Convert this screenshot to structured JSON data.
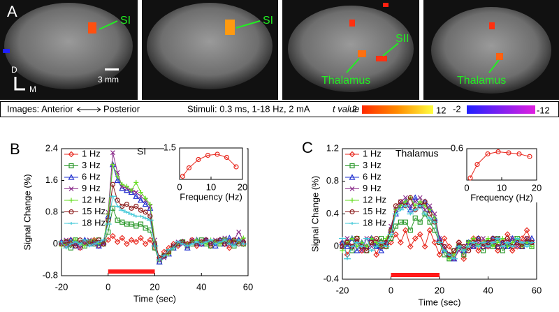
{
  "panel_a": {
    "label": "A",
    "annotations": [
      "SI",
      "SI",
      "SII",
      "Thalamus",
      "Thalamus"
    ],
    "orientation": [
      "D",
      "M"
    ],
    "scale_bar": "3 mm",
    "caption": {
      "images": "Images: Anterior",
      "posterior": "Posterior",
      "stimuli": "Stimuli: 0.3 ms, 1-18 Hz, 2 mA",
      "t_label": "t value",
      "positive": [
        2,
        12
      ],
      "negative": [
        -2,
        -12
      ]
    }
  },
  "chart_data": [
    {
      "type": "line",
      "panel": "B",
      "annotation": "SI",
      "x_label": "Time (sec)",
      "y_label": "Signal Change (%)",
      "x": [
        -20,
        -18,
        -16,
        -14,
        -12,
        -10,
        -8,
        -6,
        -4,
        -2,
        0,
        2,
        4,
        6,
        8,
        10,
        12,
        14,
        16,
        18,
        20,
        22,
        24,
        26,
        28,
        30,
        32,
        34,
        36,
        38,
        40,
        42,
        44,
        46,
        48,
        50,
        52,
        54,
        56,
        58
      ],
      "xlim": [
        -20,
        60
      ],
      "xticks": [
        -20,
        0,
        20,
        40,
        60
      ],
      "ylim": [
        -0.8,
        2.4
      ],
      "yticks": [
        -0.8,
        0,
        0.8,
        1.6,
        2.4
      ],
      "stimulus": [
        0,
        20
      ],
      "stimulus_color": "#ff1a1a",
      "legend": "upper-left",
      "series": [
        {
          "name": "1 Hz",
          "color": "#e8261c",
          "marker": "diamond",
          "values": [
            0.05,
            -0.05,
            0.1,
            0,
            -0.1,
            0.05,
            0,
            0.1,
            -0.05,
            0,
            0.1,
            0.2,
            0.05,
            0.15,
            0,
            0.1,
            0.05,
            0.15,
            0,
            0.1,
            -0.1,
            -0.35,
            -0.2,
            -0.1,
            0,
            -0.05,
            0.05,
            0,
            0.1,
            -0.05,
            0,
            0.1,
            -0.05,
            0.05,
            0.1,
            0,
            -0.1,
            0.05,
            0.1,
            0
          ]
        },
        {
          "name": "3 Hz",
          "color": "#2e9a2e",
          "marker": "square",
          "values": [
            0,
            0.05,
            -0.1,
            0.1,
            0,
            -0.05,
            0.05,
            0,
            0.1,
            0,
            0.3,
            0.9,
            0.6,
            0.55,
            0.5,
            0.5,
            0.45,
            0.5,
            0.4,
            0.35,
            -0.1,
            -0.45,
            -0.3,
            -0.2,
            -0.1,
            0,
            0.05,
            -0.05,
            0,
            0.05,
            0.1,
            0,
            -0.05,
            0.05,
            0,
            0.1,
            0.05,
            -0.05,
            0.05,
            0
          ]
        },
        {
          "name": "6 Hz",
          "color": "#2030d0",
          "marker": "triangle",
          "values": [
            0.05,
            0,
            0.1,
            -0.05,
            0,
            0.1,
            0,
            0.05,
            -0.05,
            0.05,
            0.7,
            2.0,
            1.6,
            1.4,
            1.35,
            1.3,
            1.2,
            1.1,
            1.0,
            0.9,
            0,
            -0.45,
            -0.3,
            -0.25,
            -0.1,
            0,
            0.05,
            -0.1,
            0.05,
            0.1,
            0,
            0.1,
            0.05,
            -0.05,
            0.1,
            0,
            0.15,
            0.05,
            0.1,
            0.05
          ]
        },
        {
          "name": "9 Hz",
          "color": "#8a2b8a",
          "marker": "x",
          "values": [
            0,
            0.1,
            0,
            0.05,
            -0.1,
            0,
            0.1,
            0,
            0.05,
            0,
            0.8,
            2.3,
            1.8,
            1.45,
            1.4,
            1.35,
            1.3,
            1.2,
            1.1,
            0.95,
            0.1,
            -0.4,
            -0.35,
            -0.2,
            -0.05,
            0.05,
            0,
            -0.05,
            0.1,
            0,
            0.05,
            0.1,
            0,
            0.1,
            0.05,
            0.15,
            0,
            0.1,
            0.3,
            0.1
          ]
        },
        {
          "name": "12 Hz",
          "color": "#66dd22",
          "marker": "plus",
          "values": [
            -0.05,
            0,
            0.05,
            0.1,
            0,
            -0.05,
            0.05,
            0.1,
            0,
            0.05,
            0.75,
            2.0,
            1.7,
            1.5,
            1.45,
            1.35,
            1.55,
            1.3,
            1.15,
            1.0,
            0.05,
            -0.4,
            -0.3,
            -0.25,
            -0.1,
            0,
            0.05,
            0,
            0.05,
            0.1,
            0.05,
            0,
            0.1,
            0.05,
            0,
            0.1,
            0.05,
            0.1,
            0.05,
            0.15
          ]
        },
        {
          "name": "15 Hz",
          "color": "#8b1a1a",
          "marker": "circle",
          "values": [
            0,
            0.05,
            0,
            -0.05,
            0.1,
            0.05,
            0,
            0.05,
            0.1,
            0,
            0.6,
            1.5,
            1.1,
            0.95,
            1.0,
            0.9,
            0.95,
            0.85,
            0.8,
            0.7,
            0,
            -0.35,
            -0.3,
            -0.2,
            -0.05,
            0,
            0.05,
            0,
            0.05,
            0,
            0.05,
            0.1,
            0,
            0.05,
            0.1,
            0,
            0.05,
            0.1,
            0,
            0.05
          ]
        },
        {
          "name": "18 Hz",
          "color": "#40c8d8",
          "marker": "dash",
          "values": [
            0.05,
            -0.1,
            0,
            0.05,
            0,
            0.1,
            -0.05,
            0,
            0.05,
            0.1,
            0.5,
            1.2,
            0.95,
            0.85,
            0.8,
            0.75,
            0.7,
            0.7,
            0.65,
            0.6,
            -0.05,
            -0.4,
            -0.3,
            -0.15,
            -0.1,
            0.05,
            0,
            -0.05,
            0,
            0.05,
            0,
            0.05,
            0.1,
            0,
            0.05,
            0.1,
            0,
            -0.05,
            0.1,
            0
          ]
        }
      ]
    },
    {
      "type": "line",
      "inset": true,
      "x_label": "Frequency (Hz)",
      "x": [
        1,
        3,
        6,
        9,
        12,
        15,
        18
      ],
      "xlim": [
        0,
        20
      ],
      "xticks": [
        0,
        10,
        20
      ],
      "ylim": [
        0,
        1.5
      ],
      "yticks": [
        1.5
      ],
      "series": [
        {
          "color": "#e8261c",
          "marker": "circle",
          "values": [
            0.15,
            0.55,
            0.95,
            1.15,
            1.2,
            1.05,
            0.6
          ]
        }
      ]
    },
    {
      "type": "line",
      "panel": "C",
      "annotation": "Thalamus",
      "x_label": "Time (sec)",
      "y_label": "Signal Change (%)",
      "x": [
        -20,
        -18,
        -16,
        -14,
        -12,
        -10,
        -8,
        -6,
        -4,
        -2,
        0,
        2,
        4,
        6,
        8,
        10,
        12,
        14,
        16,
        18,
        20,
        22,
        24,
        26,
        28,
        30,
        32,
        34,
        36,
        38,
        40,
        42,
        44,
        46,
        48,
        50,
        52,
        54,
        56,
        58
      ],
      "xlim": [
        -20,
        60
      ],
      "xticks": [
        -20,
        0,
        20,
        40,
        60
      ],
      "ylim": [
        -0.4,
        1.2
      ],
      "yticks": [
        -0.4,
        0,
        0.4,
        0.8,
        1.2
      ],
      "stimulus": [
        0,
        20
      ],
      "stimulus_color": "#ff1a1a",
      "legend": "upper-left",
      "series": [
        {
          "name": "1 Hz",
          "color": "#e8261c",
          "marker": "diamond",
          "values": [
            0.05,
            -0.1,
            0,
            0.1,
            -0.05,
            0,
            0.1,
            -0.1,
            0.05,
            0,
            0.05,
            0.15,
            0.05,
            0.2,
            0,
            0.1,
            0.15,
            0,
            0.2,
            0.05,
            -0.1,
            0.1,
            0,
            -0.1,
            0.05,
            -0.15,
            0,
            0.1,
            -0.05,
            0.05,
            0,
            0.1,
            -0.05,
            0.05,
            0.15,
            -0.05,
            0,
            0.1,
            0.2,
            0.05
          ]
        },
        {
          "name": "3 Hz",
          "color": "#2e9a2e",
          "marker": "square",
          "values": [
            0,
            0.05,
            -0.05,
            0.1,
            0,
            -0.05,
            0.05,
            0,
            0.1,
            0,
            0.1,
            0.25,
            0.3,
            0.3,
            0.2,
            0.35,
            0.3,
            0.4,
            0.3,
            0.2,
            0.05,
            -0.1,
            -0.15,
            -0.05,
            0,
            -0.1,
            0.05,
            0,
            0.05,
            -0.05,
            0.05,
            0,
            0.1,
            -0.05,
            0,
            0.05,
            0.1,
            0,
            0.05,
            0
          ]
        },
        {
          "name": "6 Hz",
          "color": "#2030d0",
          "marker": "triangle",
          "values": [
            0.05,
            0,
            0.1,
            -0.05,
            0.05,
            0,
            0.1,
            0,
            -0.05,
            0.05,
            0.2,
            0.4,
            0.5,
            0.55,
            0.45,
            0.6,
            0.5,
            0.55,
            0.45,
            0.35,
            0.1,
            -0.05,
            -0.1,
            -0.15,
            0,
            -0.05,
            0.05,
            0,
            0.1,
            0,
            0.05,
            0.1,
            0,
            0.05,
            0,
            0.1,
            0.05,
            0,
            0.05,
            0.1
          ]
        },
        {
          "name": "9 Hz",
          "color": "#8a2b8a",
          "marker": "x",
          "values": [
            0,
            0.1,
            0,
            0.05,
            -0.05,
            0.1,
            0,
            0.05,
            0,
            0.05,
            0.25,
            0.45,
            0.55,
            0.6,
            0.5,
            0.55,
            0.6,
            0.45,
            0.5,
            0.4,
            0.1,
            0,
            -0.1,
            -0.15,
            -0.05,
            0,
            0.05,
            0,
            0.05,
            0.1,
            0,
            0.05,
            0.1,
            0,
            0.05,
            0.1,
            0,
            0.05,
            0.1,
            0.05
          ]
        },
        {
          "name": "12 Hz",
          "color": "#66dd22",
          "marker": "plus",
          "values": [
            -0.05,
            0.05,
            0.1,
            0,
            0.05,
            0,
            0.1,
            0.05,
            0,
            0.1,
            0.2,
            0.45,
            0.5,
            0.55,
            0.6,
            0.5,
            0.55,
            0.5,
            0.45,
            0.35,
            0.05,
            -0.05,
            -0.15,
            -0.1,
            0,
            -0.05,
            0.05,
            0.1,
            0,
            0.05,
            0.1,
            0,
            0.05,
            0.1,
            0,
            0.05,
            0.1,
            0,
            0.05,
            0
          ]
        },
        {
          "name": "15 Hz",
          "color": "#8b1a1a",
          "marker": "circle",
          "values": [
            0,
            0.05,
            0,
            0.1,
            0,
            -0.05,
            0.05,
            0.1,
            0,
            0.05,
            0.2,
            0.5,
            0.55,
            0.5,
            0.6,
            0.45,
            0.5,
            0.55,
            0.4,
            0.3,
            0.05,
            0,
            -0.1,
            -0.05,
            0.05,
            0,
            -0.05,
            0.05,
            0.1,
            0,
            0.05,
            0.1,
            0,
            0.05,
            0.1,
            0,
            0.05,
            0,
            0.1,
            0.05
          ]
        },
        {
          "name": "18 Hz",
          "color": "#40c8d8",
          "marker": "dash",
          "values": [
            0.1,
            -0.15,
            0,
            0.05,
            0,
            0.1,
            -0.05,
            0,
            0.05,
            0,
            0.15,
            0.4,
            0.45,
            0.5,
            0.4,
            0.45,
            0.5,
            0.4,
            0.35,
            0.3,
            0.05,
            -0.05,
            -0.1,
            -0.15,
            0,
            -0.05,
            0,
            0.05,
            0,
            0.05,
            0,
            0.05,
            0.1,
            0,
            0.05,
            0,
            0.1,
            0.05,
            0,
            0.05
          ]
        }
      ]
    },
    {
      "type": "line",
      "inset": true,
      "x_label": "Frequency (Hz)",
      "x": [
        1,
        3,
        6,
        9,
        12,
        15,
        18
      ],
      "xlim": [
        0,
        20
      ],
      "xticks": [
        0,
        10,
        20
      ],
      "ylim": [
        0,
        0.6
      ],
      "yticks": [
        0.6
      ],
      "series": [
        {
          "color": "#e8261c",
          "marker": "circle",
          "values": [
            0.04,
            0.3,
            0.5,
            0.54,
            0.52,
            0.5,
            0.45
          ]
        }
      ]
    }
  ]
}
